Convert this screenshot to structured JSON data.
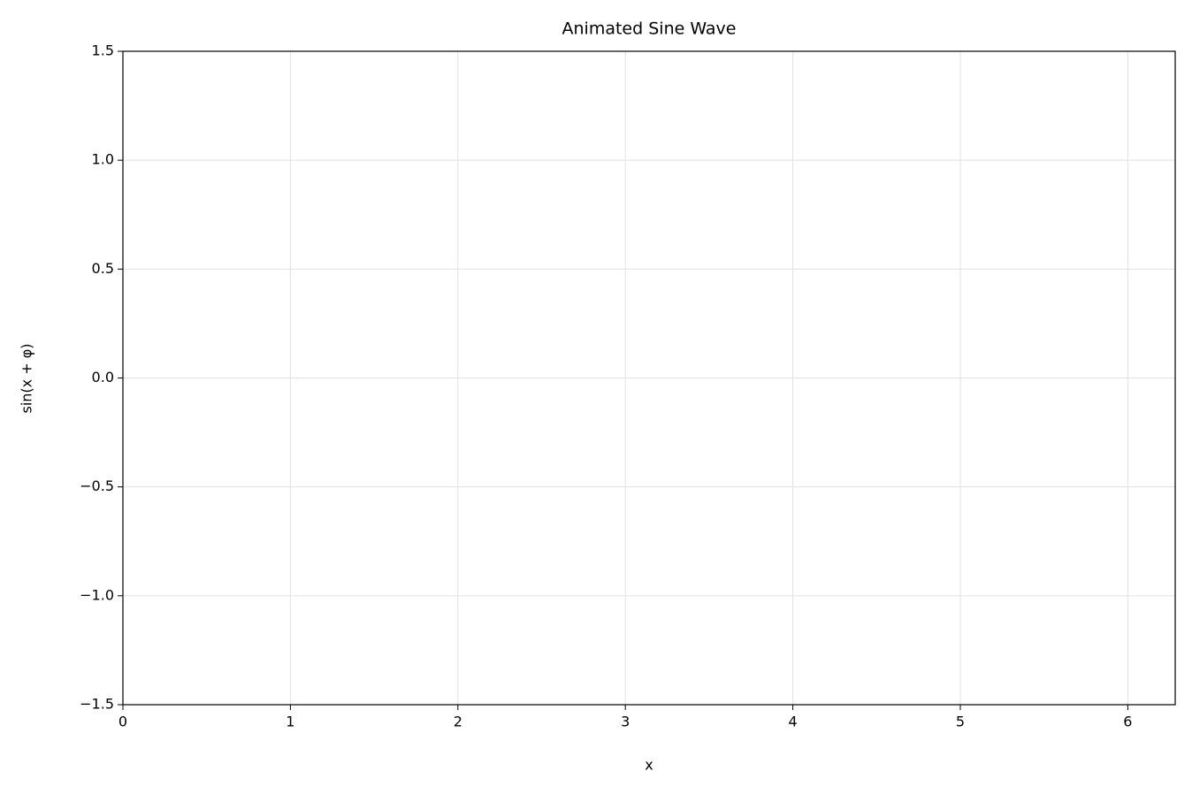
{
  "chart_data": {
    "type": "line",
    "title": "Animated Sine Wave",
    "x_label": "x",
    "y_label": "sin(x + φ)",
    "xlim": [
      0,
      6.283
    ],
    "xticks": [
      0,
      1,
      2,
      3,
      4,
      5,
      6
    ],
    "ylim": [
      -1.5,
      1.5
    ],
    "yticks": [
      {
        "value": -1.5,
        "label": "−1.5"
      },
      {
        "value": -1,
        "label": "−1.0"
      },
      {
        "value": -0.5,
        "label": "−0.5"
      },
      {
        "value": 0,
        "label": "0.0"
      },
      0.5,
      {
        "value": 1,
        "label": "1.0"
      },
      1.5
    ],
    "grid": true
  }
}
